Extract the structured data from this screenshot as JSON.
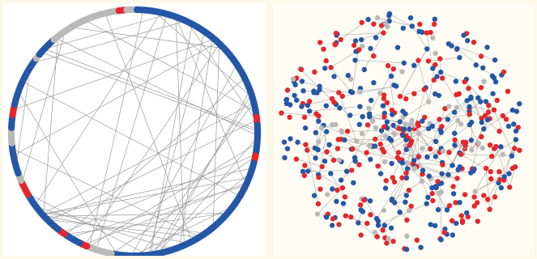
{
  "figure": {
    "panels": [
      {
        "layout": "circular",
        "nodes_on_ring": true
      },
      {
        "layout": "force-directed",
        "dense_core": true
      }
    ],
    "node_colors": {
      "blue": "#2457a6",
      "red": "#e5262b",
      "gray": "#b9b9b9"
    },
    "edge_color": "#9a9a9a"
  }
}
